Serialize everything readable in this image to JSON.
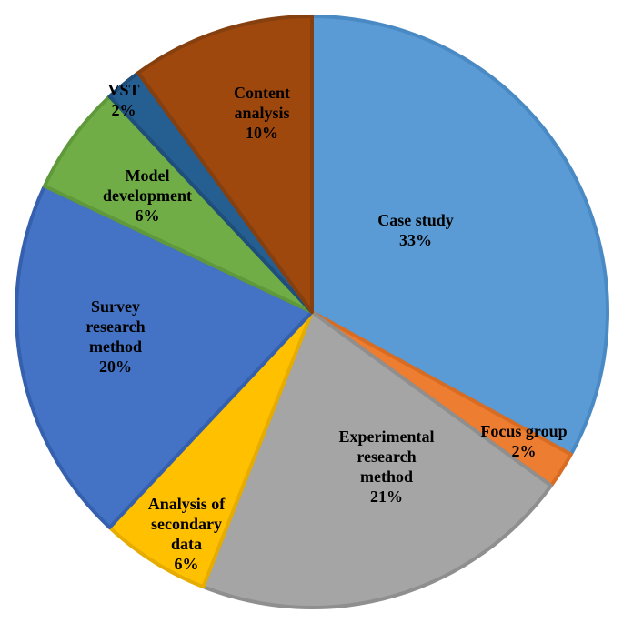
{
  "chart_data": {
    "type": "pie",
    "title": "",
    "start_angle_deg": 0,
    "direction": "clockwise",
    "slices": [
      {
        "lines": [
          "Case study",
          "33%"
        ],
        "value": 33,
        "color": "#5B9BD5",
        "stroke": "#4A8AC4"
      },
      {
        "lines": [
          "Focus group",
          "2%"
        ],
        "value": 2,
        "color": "#ED7D31",
        "stroke": "#D86C22"
      },
      {
        "lines": [
          "Experimental",
          "research",
          "method",
          "21%"
        ],
        "value": 21,
        "color": "#A5A5A5",
        "stroke": "#8F8F8F"
      },
      {
        "lines": [
          "Analysis of",
          "secondary",
          "data",
          "6%"
        ],
        "value": 6,
        "color": "#FFC000",
        "stroke": "#E6AD00"
      },
      {
        "lines": [
          "Survey",
          "research",
          "method",
          "20%"
        ],
        "value": 20,
        "color": "#4472C4",
        "stroke": "#3560AE"
      },
      {
        "lines": [
          "Model",
          "development",
          "6%"
        ],
        "value": 6,
        "color": "#70AD47",
        "stroke": "#5F993B"
      },
      {
        "lines": [
          "VST",
          "2%"
        ],
        "value": 2,
        "color": "#255E91",
        "stroke": "#1E4E79"
      },
      {
        "lines": [
          "Content",
          "analysis",
          "10%"
        ],
        "value": 10,
        "color": "#9E480E",
        "stroke": "#86400F"
      }
    ]
  }
}
